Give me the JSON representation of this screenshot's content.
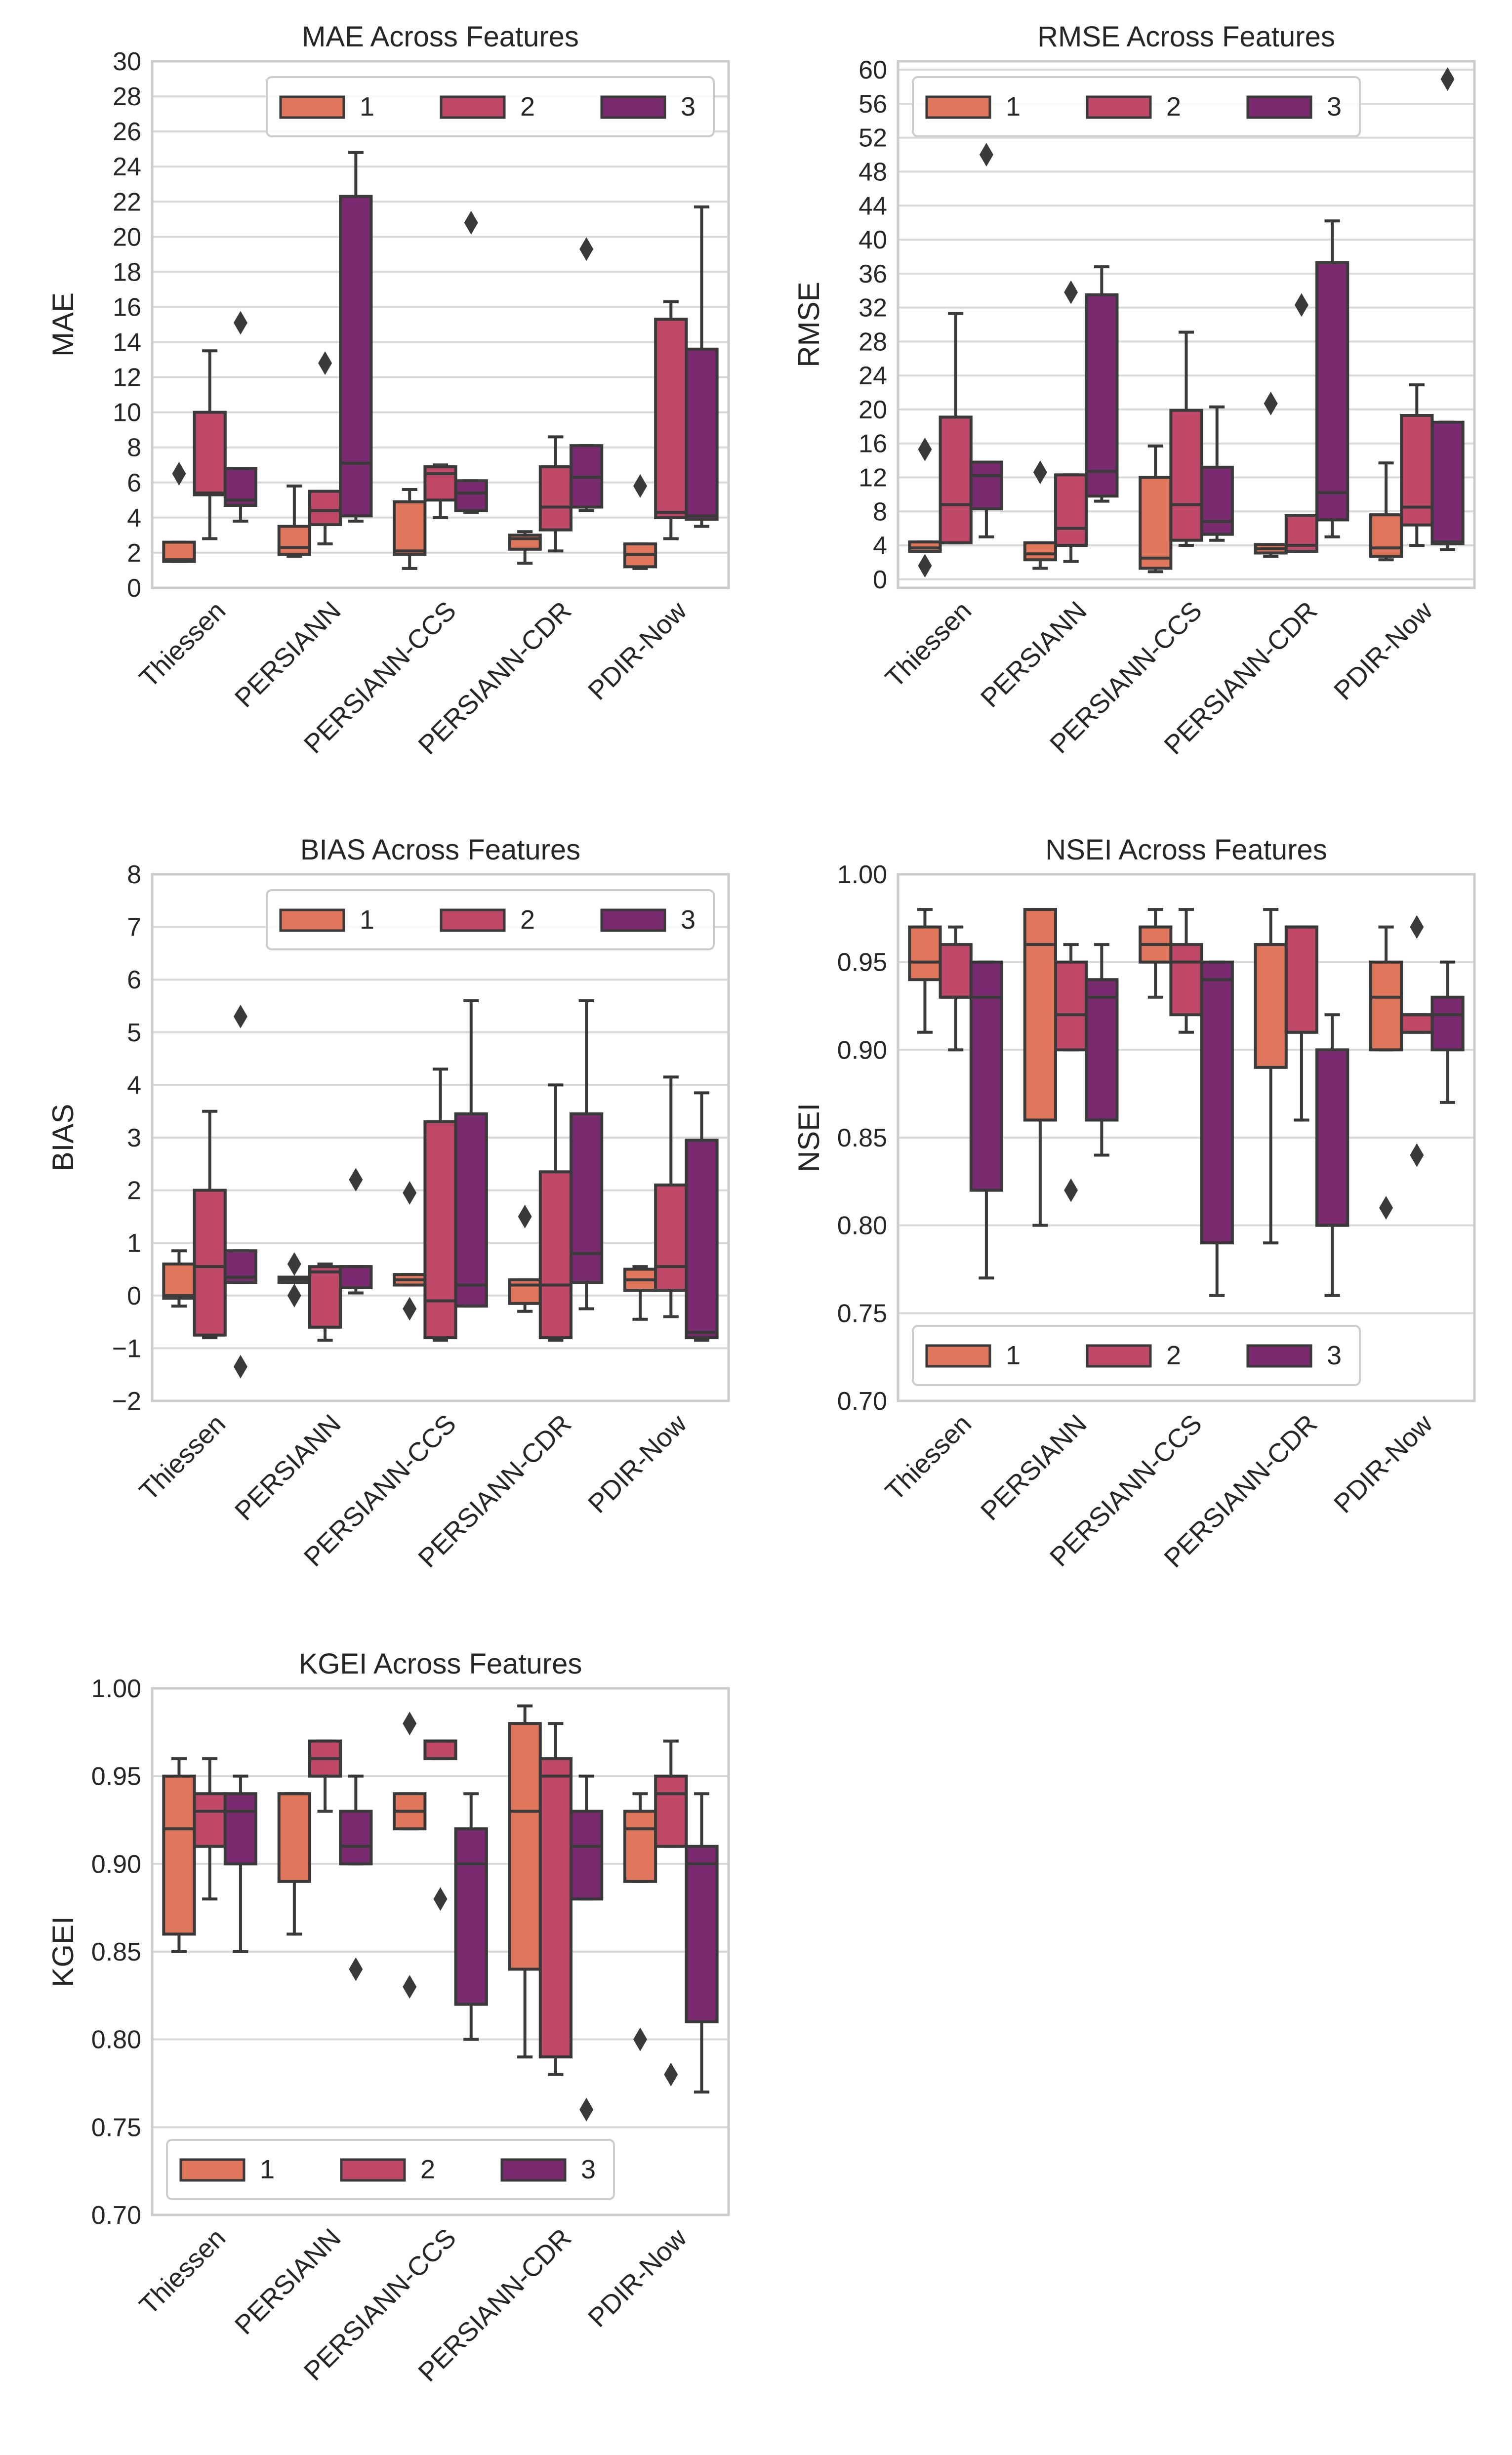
{
  "colors": {
    "1": "#E0775C",
    "2": "#C04868",
    "3": "#7A2A6E",
    "grid": "#D9D9D9",
    "frame": "#CCCCCC",
    "line": "#3A3A3A"
  },
  "chart_data": [
    {
      "type": "box",
      "title": "MAE Across Features",
      "ylabel": "MAE",
      "xlabel": "",
      "ylim": [
        0,
        30
      ],
      "yticks": [
        "0",
        "2",
        "4",
        "6",
        "8",
        "10",
        "12",
        "14",
        "16",
        "18",
        "20",
        "22",
        "24",
        "26",
        "28",
        "30"
      ],
      "ytick_values": [
        0,
        2,
        4,
        6,
        8,
        10,
        12,
        14,
        16,
        18,
        20,
        22,
        24,
        26,
        28,
        30
      ],
      "legend": {
        "position": "top-right",
        "entries": [
          "1",
          "2",
          "3"
        ]
      },
      "categories": [
        "Thiessen",
        "PERSIANN",
        "PERSIANN-CCS",
        "PERSIANN-CDR",
        "PDIR-Now"
      ],
      "boxes": [
        {
          "cat": 0,
          "series": "1",
          "wl": 1.5,
          "q1": 1.5,
          "med": 1.6,
          "q3": 2.6,
          "wh": 2.6,
          "out": [
            6.5
          ]
        },
        {
          "cat": 0,
          "series": "2",
          "wl": 2.8,
          "q1": 5.3,
          "med": 5.4,
          "q3": 10.0,
          "wh": 13.5,
          "out": []
        },
        {
          "cat": 0,
          "series": "3",
          "wl": 3.8,
          "q1": 4.7,
          "med": 5.0,
          "q3": 6.8,
          "wh": 6.8,
          "out": [
            15.1
          ]
        },
        {
          "cat": 1,
          "series": "1",
          "wl": 1.8,
          "q1": 1.9,
          "med": 2.3,
          "q3": 3.5,
          "wh": 5.8,
          "out": []
        },
        {
          "cat": 1,
          "series": "2",
          "wl": 2.5,
          "q1": 3.6,
          "med": 4.4,
          "q3": 5.5,
          "wh": 5.5,
          "out": [
            12.8
          ]
        },
        {
          "cat": 1,
          "series": "3",
          "wl": 3.8,
          "q1": 4.1,
          "med": 7.1,
          "q3": 22.3,
          "wh": 24.8,
          "out": []
        },
        {
          "cat": 2,
          "series": "1",
          "wl": 1.1,
          "q1": 1.9,
          "med": 2.1,
          "q3": 4.9,
          "wh": 5.6,
          "out": []
        },
        {
          "cat": 2,
          "series": "2",
          "wl": 4.0,
          "q1": 5.0,
          "med": 6.5,
          "q3": 6.9,
          "wh": 7.0,
          "out": []
        },
        {
          "cat": 2,
          "series": "3",
          "wl": 4.3,
          "q1": 4.4,
          "med": 5.4,
          "q3": 6.1,
          "wh": 6.1,
          "out": [
            20.8
          ]
        },
        {
          "cat": 3,
          "series": "1",
          "wl": 1.4,
          "q1": 2.2,
          "med": 2.8,
          "q3": 3.0,
          "wh": 3.2,
          "out": []
        },
        {
          "cat": 3,
          "series": "2",
          "wl": 2.1,
          "q1": 3.3,
          "med": 4.6,
          "q3": 6.9,
          "wh": 8.6,
          "out": []
        },
        {
          "cat": 3,
          "series": "3",
          "wl": 4.4,
          "q1": 4.6,
          "med": 6.3,
          "q3": 8.1,
          "wh": 8.1,
          "out": [
            19.3
          ]
        },
        {
          "cat": 4,
          "series": "1",
          "wl": 1.1,
          "q1": 1.2,
          "med": 1.9,
          "q3": 2.5,
          "wh": 2.5,
          "out": [
            5.8
          ]
        },
        {
          "cat": 4,
          "series": "2",
          "wl": 2.8,
          "q1": 4.0,
          "med": 4.3,
          "q3": 15.3,
          "wh": 16.3,
          "out": []
        },
        {
          "cat": 4,
          "series": "3",
          "wl": 3.5,
          "q1": 3.9,
          "med": 4.1,
          "q3": 13.6,
          "wh": 21.7,
          "out": []
        }
      ]
    },
    {
      "type": "box",
      "title": "RMSE Across Features",
      "ylabel": "RMSE",
      "xlabel": "",
      "ylim": [
        -1,
        61
      ],
      "yticks": [
        "0",
        "4",
        "8",
        "12",
        "16",
        "20",
        "24",
        "28",
        "32",
        "36",
        "40",
        "44",
        "48",
        "52",
        "56",
        "60"
      ],
      "ytick_values": [
        0,
        4,
        8,
        12,
        16,
        20,
        24,
        28,
        32,
        36,
        40,
        44,
        48,
        52,
        56,
        60
      ],
      "legend": {
        "position": "top-left",
        "entries": [
          "1",
          "2",
          "3"
        ]
      },
      "categories": [
        "Thiessen",
        "PERSIANN",
        "PERSIANN-CCS",
        "PERSIANN-CDR",
        "PDIR-Now"
      ],
      "boxes": [
        {
          "cat": 0,
          "series": "1",
          "wl": 3.3,
          "q1": 3.3,
          "med": 3.7,
          "q3": 4.4,
          "wh": 4.4,
          "out": [
            15.3,
            1.6
          ]
        },
        {
          "cat": 0,
          "series": "2",
          "wl": 4.3,
          "q1": 4.3,
          "med": 8.8,
          "q3": 19.1,
          "wh": 31.3,
          "out": []
        },
        {
          "cat": 0,
          "series": "3",
          "wl": 5.0,
          "q1": 8.3,
          "med": 12.2,
          "q3": 13.8,
          "wh": 13.8,
          "out": [
            50.0
          ]
        },
        {
          "cat": 1,
          "series": "1",
          "wl": 1.3,
          "q1": 2.3,
          "med": 3.0,
          "q3": 4.3,
          "wh": 4.3,
          "out": [
            12.6
          ]
        },
        {
          "cat": 1,
          "series": "2",
          "wl": 2.1,
          "q1": 4.0,
          "med": 6.0,
          "q3": 12.3,
          "wh": 12.3,
          "out": [
            33.8
          ]
        },
        {
          "cat": 1,
          "series": "3",
          "wl": 9.2,
          "q1": 9.8,
          "med": 12.7,
          "q3": 33.5,
          "wh": 36.8,
          "out": []
        },
        {
          "cat": 2,
          "series": "1",
          "wl": 0.9,
          "q1": 1.3,
          "med": 2.5,
          "q3": 12.0,
          "wh": 15.7,
          "out": []
        },
        {
          "cat": 2,
          "series": "2",
          "wl": 4.0,
          "q1": 4.6,
          "med": 8.8,
          "q3": 19.9,
          "wh": 29.1,
          "out": []
        },
        {
          "cat": 2,
          "series": "3",
          "wl": 4.6,
          "q1": 5.3,
          "med": 6.8,
          "q3": 13.2,
          "wh": 20.3,
          "out": []
        },
        {
          "cat": 3,
          "series": "1",
          "wl": 2.7,
          "q1": 3.1,
          "med": 3.6,
          "q3": 4.1,
          "wh": 4.1,
          "out": [
            20.7
          ]
        },
        {
          "cat": 3,
          "series": "2",
          "wl": 3.3,
          "q1": 3.3,
          "med": 4.0,
          "q3": 7.5,
          "wh": 7.5,
          "out": [
            32.3
          ]
        },
        {
          "cat": 3,
          "series": "3",
          "wl": 5.0,
          "q1": 7.0,
          "med": 10.2,
          "q3": 37.3,
          "wh": 42.2,
          "out": []
        },
        {
          "cat": 4,
          "series": "1",
          "wl": 2.3,
          "q1": 2.7,
          "med": 3.7,
          "q3": 7.6,
          "wh": 13.7,
          "out": []
        },
        {
          "cat": 4,
          "series": "2",
          "wl": 4.0,
          "q1": 6.4,
          "med": 8.5,
          "q3": 19.3,
          "wh": 22.9,
          "out": []
        },
        {
          "cat": 4,
          "series": "3",
          "wl": 3.5,
          "q1": 4.2,
          "med": 4.4,
          "q3": 18.5,
          "wh": 18.5,
          "out": [
            58.9
          ]
        }
      ]
    },
    {
      "type": "box",
      "title": "BIAS Across Features",
      "ylabel": "BIAS",
      "xlabel": "",
      "ylim": [
        -2,
        8
      ],
      "yticks": [
        "−2",
        "−1",
        "0",
        "1",
        "2",
        "3",
        "4",
        "5",
        "6",
        "7",
        "8"
      ],
      "ytick_values": [
        -2,
        -1,
        0,
        1,
        2,
        3,
        4,
        5,
        6,
        7,
        8
      ],
      "legend": {
        "position": "top-right",
        "entries": [
          "1",
          "2",
          "3"
        ]
      },
      "categories": [
        "Thiessen",
        "PERSIANN",
        "PERSIANN-CCS",
        "PERSIANN-CDR",
        "PDIR-Now"
      ],
      "boxes": [
        {
          "cat": 0,
          "series": "1",
          "wl": -0.2,
          "q1": -0.05,
          "med": 0.0,
          "q3": 0.6,
          "wh": 0.85,
          "out": []
        },
        {
          "cat": 0,
          "series": "2",
          "wl": -0.8,
          "q1": -0.75,
          "med": 0.55,
          "q3": 2.0,
          "wh": 3.5,
          "out": []
        },
        {
          "cat": 0,
          "series": "3",
          "wl": 0.25,
          "q1": 0.25,
          "med": 0.35,
          "q3": 0.85,
          "wh": 0.85,
          "out": [
            5.3,
            -1.35
          ]
        },
        {
          "cat": 1,
          "series": "1",
          "wl": 0.25,
          "q1": 0.25,
          "med": 0.3,
          "q3": 0.35,
          "wh": 0.35,
          "out": [
            0.6,
            0.0
          ]
        },
        {
          "cat": 1,
          "series": "2",
          "wl": -0.85,
          "q1": -0.6,
          "med": 0.45,
          "q3": 0.55,
          "wh": 0.6,
          "out": []
        },
        {
          "cat": 1,
          "series": "3",
          "wl": 0.05,
          "q1": 0.15,
          "med": 0.55,
          "q3": 0.55,
          "wh": 0.55,
          "out": [
            2.2
          ]
        },
        {
          "cat": 2,
          "series": "1",
          "wl": 0.2,
          "q1": 0.2,
          "med": 0.3,
          "q3": 0.4,
          "wh": 0.4,
          "out": [
            1.95,
            -0.25
          ]
        },
        {
          "cat": 2,
          "series": "2",
          "wl": -0.85,
          "q1": -0.8,
          "med": -0.1,
          "q3": 3.3,
          "wh": 4.3,
          "out": []
        },
        {
          "cat": 2,
          "series": "3",
          "wl": -0.2,
          "q1": -0.2,
          "med": 0.2,
          "q3": 3.45,
          "wh": 5.6,
          "out": []
        },
        {
          "cat": 3,
          "series": "1",
          "wl": -0.3,
          "q1": -0.15,
          "med": 0.2,
          "q3": 0.3,
          "wh": 0.3,
          "out": [
            1.5
          ]
        },
        {
          "cat": 3,
          "series": "2",
          "wl": -0.85,
          "q1": -0.8,
          "med": 0.2,
          "q3": 2.35,
          "wh": 4.0,
          "out": []
        },
        {
          "cat": 3,
          "series": "3",
          "wl": -0.25,
          "q1": 0.25,
          "med": 0.8,
          "q3": 3.45,
          "wh": 5.6,
          "out": []
        },
        {
          "cat": 4,
          "series": "1",
          "wl": -0.45,
          "q1": 0.1,
          "med": 0.3,
          "q3": 0.5,
          "wh": 0.55,
          "out": []
        },
        {
          "cat": 4,
          "series": "2",
          "wl": -0.4,
          "q1": 0.1,
          "med": 0.55,
          "q3": 2.1,
          "wh": 4.15,
          "out": []
        },
        {
          "cat": 4,
          "series": "3",
          "wl": -0.85,
          "q1": -0.8,
          "med": -0.7,
          "q3": 2.95,
          "wh": 3.85,
          "out": []
        }
      ]
    },
    {
      "type": "box",
      "title": "NSEI Across Features",
      "ylabel": "NSEI",
      "xlabel": "",
      "ylim": [
        0.7,
        1.0
      ],
      "yticks": [
        "0.70",
        "0.75",
        "0.80",
        "0.85",
        "0.90",
        "0.95",
        "1.00"
      ],
      "ytick_values": [
        0.7,
        0.75,
        0.8,
        0.85,
        0.9,
        0.95,
        1.0
      ],
      "legend": {
        "position": "bottom-left",
        "entries": [
          "1",
          "2",
          "3"
        ]
      },
      "categories": [
        "Thiessen",
        "PERSIANN",
        "PERSIANN-CCS",
        "PERSIANN-CDR",
        "PDIR-Now"
      ],
      "boxes": [
        {
          "cat": 0,
          "series": "1",
          "wl": 0.91,
          "q1": 0.94,
          "med": 0.95,
          "q3": 0.97,
          "wh": 0.98,
          "out": []
        },
        {
          "cat": 0,
          "series": "2",
          "wl": 0.9,
          "q1": 0.93,
          "med": 0.93,
          "q3": 0.96,
          "wh": 0.97,
          "out": []
        },
        {
          "cat": 0,
          "series": "3",
          "wl": 0.77,
          "q1": 0.82,
          "med": 0.93,
          "q3": 0.95,
          "wh": 0.95,
          "out": []
        },
        {
          "cat": 1,
          "series": "1",
          "wl": 0.8,
          "q1": 0.86,
          "med": 0.96,
          "q3": 0.98,
          "wh": 0.98,
          "out": []
        },
        {
          "cat": 1,
          "series": "2",
          "wl": 0.9,
          "q1": 0.9,
          "med": 0.92,
          "q3": 0.95,
          "wh": 0.96,
          "out": [
            0.82
          ]
        },
        {
          "cat": 1,
          "series": "3",
          "wl": 0.84,
          "q1": 0.86,
          "med": 0.93,
          "q3": 0.94,
          "wh": 0.96,
          "out": []
        },
        {
          "cat": 2,
          "series": "1",
          "wl": 0.93,
          "q1": 0.95,
          "med": 0.96,
          "q3": 0.97,
          "wh": 0.98,
          "out": []
        },
        {
          "cat": 2,
          "series": "2",
          "wl": 0.91,
          "q1": 0.92,
          "med": 0.95,
          "q3": 0.96,
          "wh": 0.98,
          "out": []
        },
        {
          "cat": 2,
          "series": "3",
          "wl": 0.76,
          "q1": 0.79,
          "med": 0.94,
          "q3": 0.95,
          "wh": 0.95,
          "out": []
        },
        {
          "cat": 3,
          "series": "1",
          "wl": 0.79,
          "q1": 0.89,
          "med": 0.96,
          "q3": 0.96,
          "wh": 0.98,
          "out": []
        },
        {
          "cat": 3,
          "series": "2",
          "wl": 0.86,
          "q1": 0.91,
          "med": 0.97,
          "q3": 0.97,
          "wh": 0.97,
          "out": []
        },
        {
          "cat": 3,
          "series": "3",
          "wl": 0.76,
          "q1": 0.8,
          "med": 0.8,
          "q3": 0.9,
          "wh": 0.92,
          "out": []
        },
        {
          "cat": 4,
          "series": "1",
          "wl": 0.9,
          "q1": 0.9,
          "med": 0.93,
          "q3": 0.95,
          "wh": 0.97,
          "out": [
            0.81
          ]
        },
        {
          "cat": 4,
          "series": "2",
          "wl": 0.91,
          "q1": 0.91,
          "med": 0.92,
          "q3": 0.92,
          "wh": 0.92,
          "out": [
            0.97,
            0.84
          ]
        },
        {
          "cat": 4,
          "series": "3",
          "wl": 0.87,
          "q1": 0.9,
          "med": 0.92,
          "q3": 0.93,
          "wh": 0.95,
          "out": []
        }
      ]
    },
    {
      "type": "box",
      "title": "KGEI Across Features",
      "ylabel": "KGEI",
      "xlabel": "",
      "ylim": [
        0.7,
        1.0
      ],
      "yticks": [
        "0.70",
        "0.75",
        "0.80",
        "0.85",
        "0.90",
        "0.95",
        "1.00"
      ],
      "ytick_values": [
        0.7,
        0.75,
        0.8,
        0.85,
        0.9,
        0.95,
        1.0
      ],
      "legend": {
        "position": "bottom-left",
        "entries": [
          "1",
          "2",
          "3"
        ]
      },
      "categories": [
        "Thiessen",
        "PERSIANN",
        "PERSIANN-CCS",
        "PERSIANN-CDR",
        "PDIR-Now"
      ],
      "boxes": [
        {
          "cat": 0,
          "series": "1",
          "wl": 0.85,
          "q1": 0.86,
          "med": 0.92,
          "q3": 0.95,
          "wh": 0.96,
          "out": []
        },
        {
          "cat": 0,
          "series": "2",
          "wl": 0.88,
          "q1": 0.91,
          "med": 0.93,
          "q3": 0.94,
          "wh": 0.96,
          "out": []
        },
        {
          "cat": 0,
          "series": "3",
          "wl": 0.85,
          "q1": 0.9,
          "med": 0.93,
          "q3": 0.94,
          "wh": 0.95,
          "out": []
        },
        {
          "cat": 1,
          "series": "1",
          "wl": 0.86,
          "q1": 0.89,
          "med": 0.94,
          "q3": 0.94,
          "wh": 0.94,
          "out": []
        },
        {
          "cat": 1,
          "series": "2",
          "wl": 0.93,
          "q1": 0.95,
          "med": 0.96,
          "q3": 0.97,
          "wh": 0.97,
          "out": []
        },
        {
          "cat": 1,
          "series": "3",
          "wl": 0.9,
          "q1": 0.9,
          "med": 0.91,
          "q3": 0.93,
          "wh": 0.95,
          "out": [
            0.84
          ]
        },
        {
          "cat": 2,
          "series": "1",
          "wl": 0.92,
          "q1": 0.92,
          "med": 0.93,
          "q3": 0.94,
          "wh": 0.94,
          "out": [
            0.98,
            0.83
          ]
        },
        {
          "cat": 2,
          "series": "2",
          "wl": 0.96,
          "q1": 0.96,
          "med": 0.97,
          "q3": 0.97,
          "wh": 0.97,
          "out": [
            0.88
          ]
        },
        {
          "cat": 2,
          "series": "3",
          "wl": 0.8,
          "q1": 0.82,
          "med": 0.9,
          "q3": 0.92,
          "wh": 0.94,
          "out": []
        },
        {
          "cat": 3,
          "series": "1",
          "wl": 0.79,
          "q1": 0.84,
          "med": 0.93,
          "q3": 0.98,
          "wh": 0.99,
          "out": []
        },
        {
          "cat": 3,
          "series": "2",
          "wl": 0.78,
          "q1": 0.79,
          "med": 0.95,
          "q3": 0.96,
          "wh": 0.98,
          "out": []
        },
        {
          "cat": 3,
          "series": "3",
          "wl": 0.88,
          "q1": 0.88,
          "med": 0.91,
          "q3": 0.93,
          "wh": 0.95,
          "out": [
            0.76
          ]
        },
        {
          "cat": 4,
          "series": "1",
          "wl": 0.89,
          "q1": 0.89,
          "med": 0.92,
          "q3": 0.93,
          "wh": 0.94,
          "out": [
            0.8
          ]
        },
        {
          "cat": 4,
          "series": "2",
          "wl": 0.91,
          "q1": 0.91,
          "med": 0.94,
          "q3": 0.95,
          "wh": 0.97,
          "out": [
            0.78
          ]
        },
        {
          "cat": 4,
          "series": "3",
          "wl": 0.77,
          "q1": 0.81,
          "med": 0.9,
          "q3": 0.91,
          "wh": 0.94,
          "out": []
        }
      ]
    }
  ]
}
